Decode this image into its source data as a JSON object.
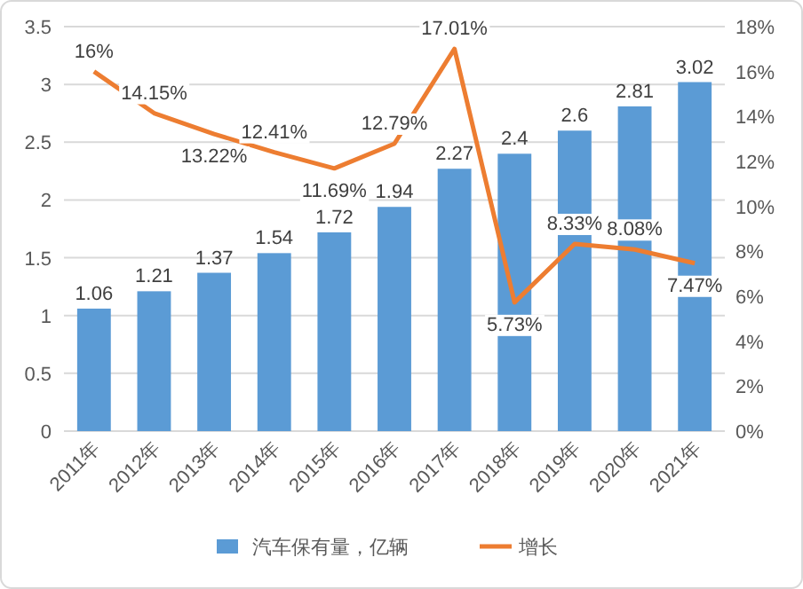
{
  "chart_data": {
    "type": "bar",
    "categories": [
      "2011年",
      "2012年",
      "2013年",
      "2014年",
      "2015年",
      "2016年",
      "2017年",
      "2018年",
      "2019年",
      "2020年",
      "2021年"
    ],
    "series": [
      {
        "name": "汽车保有量，亿辆",
        "color": "#5b9bd5",
        "values": [
          1.06,
          1.21,
          1.37,
          1.54,
          1.72,
          1.94,
          2.27,
          2.4,
          2.6,
          2.81,
          3.02
        ],
        "value_labels": [
          "1.06",
          "1.21",
          "1.37",
          "1.54",
          "1.72",
          "1.94",
          "2.27",
          "2.4",
          "2.6",
          "2.81",
          "3.02"
        ]
      },
      {
        "name": "增长",
        "type": "line",
        "axis": "y2",
        "color": "#ed7d31",
        "values": [
          16,
          14.15,
          13.22,
          12.41,
          11.69,
          12.79,
          17.01,
          5.73,
          8.33,
          8.08,
          7.47
        ],
        "value_labels": [
          "16%",
          "14.15%",
          "13.22%",
          "12.41%",
          "11.69%",
          "12.79%",
          "17.01%",
          "5.73%",
          "8.33%",
          "8.08%",
          "7.47%"
        ]
      }
    ],
    "ylim": [
      0,
      3.5
    ],
    "yticks": [
      0,
      0.5,
      1,
      1.5,
      2,
      2.5,
      3,
      3.5
    ],
    "y2lim": [
      0,
      18
    ],
    "y2ticks": [
      {
        "value": 0,
        "label": "0%"
      },
      {
        "value": 2,
        "label": "2%"
      },
      {
        "value": 4,
        "label": "4%"
      },
      {
        "value": 6,
        "label": "6%"
      },
      {
        "value": 8,
        "label": "8%"
      },
      {
        "value": 10,
        "label": "10%"
      },
      {
        "value": 12,
        "label": "12%"
      },
      {
        "value": 14,
        "label": "14%"
      },
      {
        "value": 16,
        "label": "16%"
      },
      {
        "value": 18,
        "label": "18%"
      }
    ],
    "grid": "y",
    "legend": "bottom",
    "marker": "none",
    "line_style": "solid"
  }
}
